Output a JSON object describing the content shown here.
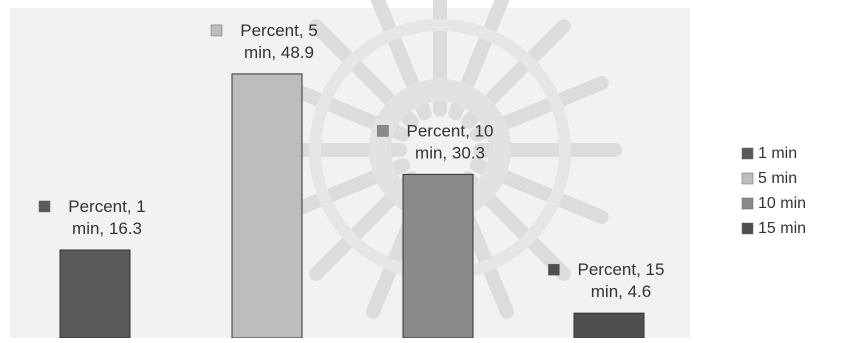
{
  "chart_data": {
    "type": "bar",
    "categories": [
      "1 min",
      "5 min",
      "10 min",
      "15 min"
    ],
    "series": [
      {
        "name": "Percent",
        "values": [
          16.3,
          48.9,
          30.3,
          4.6
        ]
      }
    ],
    "data_labels": [
      {
        "line1": "Percent, 1",
        "line2": "min, 16.3"
      },
      {
        "line1": "Percent, 5",
        "line2": "min, 48.9"
      },
      {
        "line1": "Percent, 10",
        "line2": "min, 30.3"
      },
      {
        "line1": "Percent, 15",
        "line2": "min, 4.6"
      }
    ],
    "legend": {
      "position": "right",
      "entries": [
        "1 min",
        "5 min",
        "10 min",
        "15 min"
      ]
    },
    "colors": [
      "#5a5a5a",
      "#bdbdbd",
      "#8a8a8a",
      "#4f4f4f"
    ],
    "ylim": [
      0,
      55
    ],
    "grid": false,
    "watermark": "ornamental star pattern"
  }
}
